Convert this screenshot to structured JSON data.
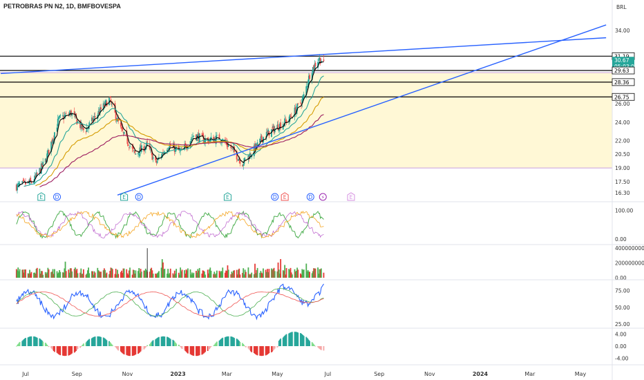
{
  "header": {
    "title": "PETROBRAS PN N2, 1D, BMFBOVESPA",
    "currency": "BRL"
  },
  "colors": {
    "up": "#26a69a",
    "down": "#ef5350",
    "trendline": "#2962ff",
    "zone_fill": "#fff8d6",
    "ema_fast": "#000000",
    "ema_mid": "#26a69a",
    "ema_slow": "#d49b00",
    "ema_long": "#9c1b5e"
  },
  "chart_data": [
    {
      "type": "candlestick",
      "title": "PETROBRAS PN N2, 1D, BMFBOVESPA",
      "ylabel": "BRL",
      "ylim": [
        15.6,
        35.8
      ],
      "y_ticks": [
        "34.00",
        "26.00",
        "24.00",
        "22.00",
        "20.50",
        "19.00",
        "17.50",
        "16.30"
      ],
      "price_tags": [
        {
          "label": "31.19",
          "style": "outline"
        },
        {
          "label": "30.67",
          "sub": "05:03:09",
          "style": "filled"
        },
        {
          "label": "29.63",
          "style": "outline"
        },
        {
          "label": "28.36",
          "style": "outline"
        },
        {
          "label": "26.75",
          "style": "outline"
        }
      ],
      "horizontal_levels": [
        31.19,
        29.63,
        28.36,
        26.75
      ],
      "zone": [
        19.0,
        29.4
      ],
      "x_ticks": [
        "Jul",
        "Sep",
        "Nov",
        "2023",
        "Mar",
        "May",
        "Jul",
        "Sep",
        "Nov",
        "2024",
        "Mar",
        "May"
      ],
      "x_tick_dates": [
        "2022-07-01",
        "2022-09-01",
        "2022-11-01",
        "2023-01-01",
        "2023-03-01",
        "2023-05-01",
        "2023-07-01",
        "2023-09-01",
        "2023-11-01",
        "2024-01-01",
        "2024-03-01",
        "2024-05-01"
      ],
      "close_anchors": [
        [
          "2022-06-20",
          17.0
        ],
        [
          "2022-07-10",
          17.5
        ],
        [
          "2022-07-25",
          19.8
        ],
        [
          "2022-08-10",
          24.3
        ],
        [
          "2022-08-25",
          25.0
        ],
        [
          "2022-09-10",
          23.0
        ],
        [
          "2022-09-25",
          24.8
        ],
        [
          "2022-10-10",
          26.5
        ],
        [
          "2022-10-25",
          23.0
        ],
        [
          "2022-11-10",
          20.5
        ],
        [
          "2022-11-25",
          21.5
        ],
        [
          "2022-12-05",
          19.5
        ],
        [
          "2022-12-20",
          21.5
        ],
        [
          "2023-01-05",
          20.7
        ],
        [
          "2023-01-20",
          22.6
        ],
        [
          "2023-02-05",
          22.0
        ],
        [
          "2023-02-20",
          22.3
        ],
        [
          "2023-03-05",
          21.3
        ],
        [
          "2023-03-20",
          19.5
        ],
        [
          "2023-04-01",
          20.8
        ],
        [
          "2023-04-15",
          22.5
        ],
        [
          "2023-05-01",
          23.5
        ],
        [
          "2023-05-15",
          24.3
        ],
        [
          "2023-06-01",
          26.5
        ],
        [
          "2023-06-10",
          29.5
        ],
        [
          "2023-06-20",
          30.9
        ],
        [
          "2023-06-26",
          30.67
        ]
      ],
      "moving_averages": [
        {
          "name": "fast",
          "color": "#000000",
          "period": 5
        },
        {
          "name": "mid",
          "color": "#26a69a",
          "period": 21
        },
        {
          "name": "slow",
          "color": "#d49b00",
          "period": 50
        },
        {
          "name": "long",
          "color": "#9c1b5e",
          "period": 100
        }
      ],
      "trendlines": [
        {
          "from": [
            "2022-06-01",
            29.3
          ],
          "to": [
            "2024-06-01",
            33.2
          ]
        },
        {
          "from": [
            "2022-10-20",
            16.05
          ],
          "to": [
            "2024-06-01",
            34.6
          ]
        }
      ],
      "event_markers": [
        {
          "date": "2022-07-20",
          "label": "E",
          "kind": "earnings"
        },
        {
          "date": "2022-08-08",
          "label": "D",
          "kind": "dividend"
        },
        {
          "date": "2022-10-28",
          "label": "E",
          "kind": "earnings"
        },
        {
          "date": "2022-11-15",
          "label": "D",
          "kind": "dividend"
        },
        {
          "date": "2023-03-02",
          "label": "E",
          "kind": "earnings"
        },
        {
          "date": "2023-04-28",
          "label": "D",
          "kind": "dividend"
        },
        {
          "date": "2023-05-10",
          "label": "E",
          "kind": "earnings-red"
        },
        {
          "date": "2023-06-10",
          "label": "D",
          "kind": "dividend"
        },
        {
          "date": "2023-06-25",
          "label": "⚡",
          "kind": "split"
        },
        {
          "date": "2023-07-29",
          "label": "E",
          "kind": "future"
        }
      ]
    },
    {
      "type": "line",
      "ylim": [
        -10,
        120
      ],
      "y_ticks": [
        "100.00",
        "0.00"
      ],
      "series": [
        {
          "color": "#4caf50"
        },
        {
          "color": "#c26fd1"
        },
        {
          "color": "#f5a623"
        }
      ]
    },
    {
      "type": "bar",
      "ylim": [
        0,
        430000000
      ],
      "y_ticks": [
        "400000000.00",
        "200000000.00",
        "0.00"
      ]
    },
    {
      "type": "line",
      "ylim": [
        22,
        88
      ],
      "y_ticks": [
        "75.00",
        "50.00",
        "25.00"
      ],
      "series": [
        {
          "color": "#2962ff"
        },
        {
          "color": "#4caf50"
        },
        {
          "color": "#ef5350"
        }
      ]
    },
    {
      "type": "bar",
      "ylim": [
        -5.2,
        5.2
      ],
      "y_ticks": [
        "4.00",
        "0.00",
        "-4.00"
      ]
    }
  ]
}
